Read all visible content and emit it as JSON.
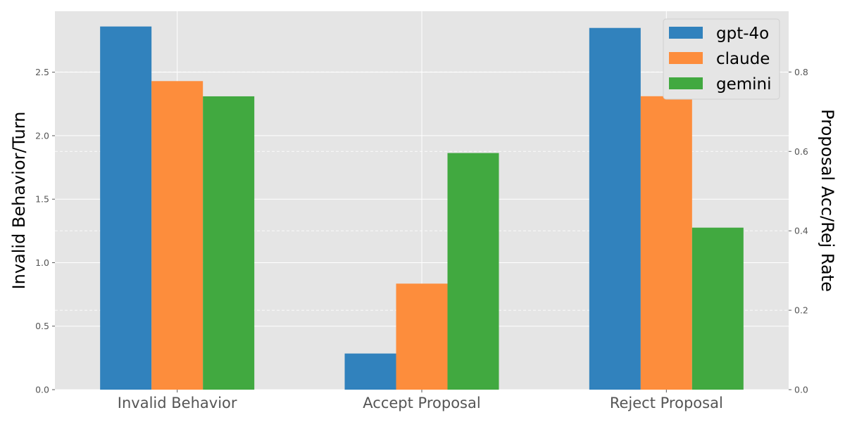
{
  "chart_data": {
    "type": "bar",
    "categories": [
      "Invalid Behavior",
      "Accept Proposal",
      "Reject Proposal"
    ],
    "series": [
      {
        "name": "gpt-4o",
        "color": "#3182bd",
        "values": [
          2.86,
          0.091,
          0.911
        ]
      },
      {
        "name": "claude",
        "color": "#fd8d3c",
        "values": [
          2.43,
          0.267,
          0.739
        ]
      },
      {
        "name": "gemini",
        "color": "#41a940",
        "values": [
          2.31,
          0.596,
          0.408
        ]
      }
    ],
    "value_axis_per_category": [
      "left",
      "right",
      "right"
    ],
    "ylabel_left": "Invalid Behavior/Turn",
    "ylabel_right": "Proposal Acc/Rej Rate",
    "ylim_left": [
      0,
      2.98
    ],
    "ylim_right": [
      0,
      0.953
    ],
    "yticks_left": [
      "0.0",
      "0.5",
      "1.0",
      "1.5",
      "2.0",
      "2.5"
    ],
    "yticks_right": [
      "0.0",
      "0.2",
      "0.4",
      "0.6",
      "0.8"
    ],
    "grid": true,
    "legend_position": "top-right",
    "style": {
      "plot_background": "#e5e5e5",
      "grid_color": "#ffffff"
    }
  }
}
